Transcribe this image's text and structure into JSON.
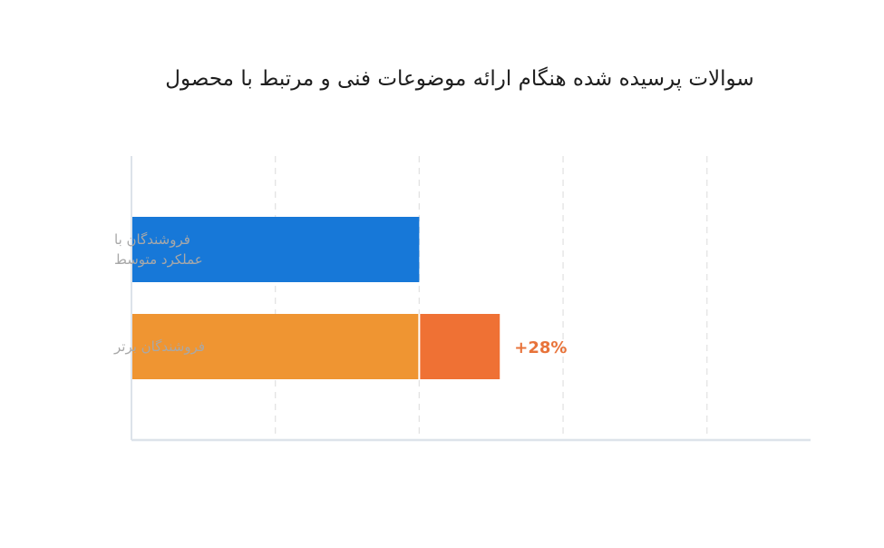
{
  "chart_data": {
    "type": "bar",
    "orientation": "horizontal",
    "stacked": true,
    "title": "سوالات پرسیده شده هنگام ارائه موضوعات فنی و مرتبط با محصول",
    "categories": [
      [
        "فروشندگان با",
        "عملکرد متوسط"
      ],
      [
        "فروشندگان برتر"
      ]
    ],
    "series": [
      {
        "values": [
          100,
          100
        ],
        "colors": [
          "#1778d8",
          "#ef9532"
        ]
      },
      {
        "values": [
          0,
          28
        ],
        "colors": [
          "#ef7134",
          "#ef7134"
        ]
      }
    ],
    "annotations": [
      {
        "category_index": 1,
        "text": "+28%",
        "color": "#e8733a"
      }
    ],
    "xlim": [
      0,
      236
    ],
    "x_gridlines": [
      50,
      100,
      150,
      200
    ],
    "grid": true,
    "tick_labels_shown": false,
    "colors": {
      "axis": "#dde3ea",
      "grid": "#e3e3e3"
    }
  }
}
